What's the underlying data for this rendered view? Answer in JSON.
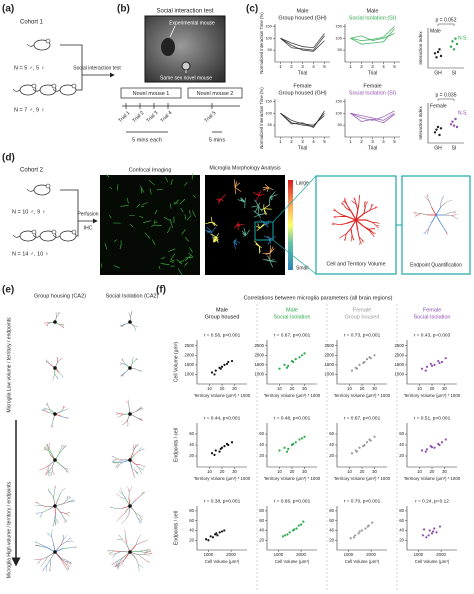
{
  "labels": {
    "a": "(a)",
    "b": "(b)",
    "c": "(c)",
    "d": "(d)",
    "e": "(e)",
    "f": "(f)"
  },
  "a": {
    "cohort": "Cohort 1",
    "n_single": "N = 5 ♂, 5 ♀",
    "n_group": "N = 7 ♂, 9 ♀",
    "arrow": "Social interaction test"
  },
  "b": {
    "title": "Social interaction test",
    "experimental": "Experimental mouse",
    "novel": "Same sex novel mouse",
    "novel1": "Novel mouse 1",
    "novel2": "Novel mouse 2",
    "trials": [
      "Trial 1",
      "Trial 2",
      "Trial 3",
      "Trial 4",
      "Trial 5"
    ],
    "dur1": "5 mins each",
    "dur2": "5 mins"
  },
  "c": {
    "xlabel": "Trial",
    "ylabel": "Normalized Interaction Time (%)",
    "x": [
      1,
      2,
      3,
      4,
      5
    ],
    "xlim": [
      0.5,
      5.5
    ],
    "ylim": [
      0,
      160
    ],
    "yticks": [
      50,
      100,
      150
    ],
    "plots": [
      {
        "sex": "Male",
        "group": "Group housed (GH)",
        "color": "#222222",
        "lines": [
          [
            100,
            60,
            55,
            50,
            110
          ],
          [
            100,
            70,
            50,
            45,
            90
          ],
          [
            100,
            80,
            65,
            60,
            120
          ]
        ]
      },
      {
        "sex": "Male",
        "group": "Social Isolation (SI)",
        "color": "#2aa84a",
        "lines": [
          [
            100,
            90,
            95,
            105,
            150
          ],
          [
            100,
            75,
            80,
            85,
            140
          ],
          [
            100,
            110,
            90,
            100,
            120
          ]
        ]
      },
      {
        "sex": "Female",
        "group": "Group housed (GH)",
        "color": "#222222",
        "lines": [
          [
            100,
            60,
            50,
            45,
            100
          ],
          [
            100,
            70,
            55,
            50,
            90
          ],
          [
            100,
            55,
            60,
            40,
            110
          ]
        ]
      },
      {
        "sex": "Female",
        "group": "Social Isolation (SI)",
        "color": "#8e4fb0",
        "lines": [
          [
            100,
            80,
            70,
            85,
            110
          ],
          [
            100,
            65,
            75,
            60,
            95
          ],
          [
            100,
            90,
            80,
            70,
            100
          ]
        ]
      }
    ],
    "index": {
      "ylabel": "Interaction Index",
      "categories": [
        "GH",
        "SI"
      ],
      "ylim": [
        -0.5,
        1
      ],
      "panels": [
        {
          "sex": "Male",
          "p": "p = 0.052",
          "ns": "N.S.",
          "colors": [
            "#222222",
            "#2aa84a"
          ],
          "gh": [
            0.05,
            -0.1,
            0.1,
            0.2,
            -0.05
          ],
          "si": [
            0.3,
            0.5,
            0.2,
            0.6,
            0.4
          ]
        },
        {
          "sex": "Female",
          "p": "p = 0.035",
          "ns": "N.S.",
          "colors": [
            "#222222",
            "#8e4fb0"
          ],
          "gh": [
            -0.1,
            0.0,
            0.1,
            -0.2,
            0.05
          ],
          "si": [
            0.2,
            0.3,
            0.15,
            0.4,
            0.1
          ]
        }
      ]
    }
  },
  "d": {
    "cohort": "Cohort 2",
    "n_single": "N = 10 ♂, 9 ♀",
    "n_group": "N = 14 ♂, 10 ♀",
    "perfusion": "Perfusion",
    "ihc": "IHC",
    "confocal": "Confocal Imaging",
    "morphology": "Microglia Morphology Analysis",
    "large": "Large",
    "small": "Small",
    "cell": "Cell and Territory Volume",
    "endpoint": "Endpoint Quantification"
  },
  "e": {
    "gh": "Group housing (CA2)",
    "si": "Social Isolation (CA2)",
    "low": "Microglia Low volume / territory / endpoints",
    "high": "Microglia High volume / territory / endpoints"
  },
  "f": {
    "title": "Correlations between microglia parameters (all brain regions)",
    "columns": [
      {
        "sex": "Male",
        "group": "Group housed",
        "color": "#111111"
      },
      {
        "sex": "Male",
        "group": "Social Isolation",
        "color": "#2aa84a"
      },
      {
        "sex": "Female",
        "group": "Group housed",
        "color": "#999999"
      },
      {
        "sex": "Female",
        "group": "Social Isolation",
        "color": "#8e4fb0"
      }
    ],
    "rows": [
      {
        "xlabel": "Territory Volume (μm³) * 1000",
        "ylabel": "Cell Volume (μm³)",
        "xlim": [
          0,
          40
        ],
        "xticks": [
          10,
          20,
          30
        ],
        "ylim": [
          500,
          2800
        ],
        "yticks": [
          1000,
          1500,
          2000,
          2500
        ],
        "stats": [
          "r = 0.56, p<0.001",
          "r = 0.67, p<0.001",
          "r = 0.73, p<0.001",
          "r = 0.43, p=0.003"
        ],
        "points": [
          {
            "x": [
              12,
              15,
              18,
              20,
              22,
              25,
              28,
              14,
              19,
              24
            ],
            "y": [
              1100,
              1200,
              1350,
              1400,
              1500,
              1650,
              1700,
              1000,
              1300,
              1550
            ]
          },
          {
            "x": [
              10,
              14,
              17,
              20,
              23,
              26,
              30,
              16,
              21,
              28
            ],
            "y": [
              1300,
              1500,
              1450,
              1700,
              1800,
              1900,
              2100,
              1350,
              1650,
              2000
            ]
          },
          {
            "x": [
              12,
              15,
              18,
              21,
              24,
              27,
              30,
              16,
              22,
              26
            ],
            "y": [
              1200,
              1350,
              1500,
              1600,
              1800,
              1850,
              2000,
              1300,
              1650,
              1900
            ]
          },
          {
            "x": [
              12,
              16,
              19,
              22,
              25,
              28,
              31,
              15,
              20,
              26
            ],
            "y": [
              1300,
              1400,
              1550,
              1500,
              1700,
              1650,
              1850,
              1200,
              1450,
              1600
            ]
          }
        ]
      },
      {
        "xlabel": "Territory Volume (μm³) * 1000",
        "ylabel": "Endpoints / cell",
        "xlim": [
          0,
          40
        ],
        "xticks": [
          10,
          20,
          30
        ],
        "ylim": [
          0,
          80
        ],
        "yticks": [
          20,
          40,
          60
        ],
        "stats": [
          "r = 0.44, p<0.001",
          "r = 0.48, p<0.001",
          "r = 0.67, p<0.001",
          "r = 0.51, p<0.001"
        ],
        "points": [
          {
            "x": [
              12,
              15,
              18,
              20,
              22,
              25,
              28,
              14,
              19,
              24
            ],
            "y": [
              25,
              30,
              28,
              35,
              38,
              40,
              45,
              22,
              33,
              42
            ]
          },
          {
            "x": [
              10,
              14,
              17,
              20,
              23,
              26,
              30,
              16,
              21,
              28
            ],
            "y": [
              30,
              35,
              33,
              40,
              45,
              50,
              55,
              28,
              42,
              52
            ]
          },
          {
            "x": [
              12,
              15,
              18,
              21,
              24,
              27,
              30,
              16,
              22,
              26
            ],
            "y": [
              25,
              30,
              35,
              38,
              45,
              48,
              55,
              28,
              40,
              50
            ]
          },
          {
            "x": [
              12,
              16,
              19,
              22,
              25,
              28,
              31,
              15,
              20,
              26
            ],
            "y": [
              30,
              32,
              38,
              35,
              42,
              45,
              50,
              28,
              36,
              40
            ]
          }
        ]
      },
      {
        "xlabel": "Cell Volume (μm³)",
        "ylabel": "Endpoints / cell",
        "xlim": [
          500,
          2700
        ],
        "xticks": [
          1000,
          2000
        ],
        "ylim": [
          0,
          90
        ],
        "yticks": [
          20,
          40,
          60,
          80
        ],
        "stats": [
          "r = 0.38, p<0.001",
          "r = 0.66, p<0.001",
          "r = 0.70, p<0.001",
          "r = 0.24, p=0.12"
        ],
        "points": [
          {
            "x": [
              900,
              1100,
              1200,
              1300,
              1400,
              1500,
              1700,
              1000,
              1350,
              1600
            ],
            "y": [
              22,
              28,
              26,
              32,
              30,
              36,
              40,
              20,
              34,
              38
            ]
          },
          {
            "x": [
              1200,
              1400,
              1500,
              1700,
              1800,
              1900,
              2100,
              1300,
              1650,
              2000
            ],
            "y": [
              28,
              32,
              36,
              42,
              44,
              50,
              58,
              30,
              40,
              52
            ]
          },
          {
            "x": [
              1100,
              1300,
              1450,
              1600,
              1750,
              1900,
              2050,
              1250,
              1500,
              1850
            ],
            "y": [
              24,
              30,
              34,
              40,
              44,
              50,
              56,
              26,
              38,
              48
            ]
          },
          {
            "x": [
              1200,
              1350,
              1500,
              1600,
              1700,
              1800,
              1950,
              1250,
              1450,
              1650
            ],
            "y": [
              30,
              26,
              40,
              34,
              44,
              36,
              48,
              42,
              30,
              38
            ]
          }
        ]
      }
    ]
  }
}
